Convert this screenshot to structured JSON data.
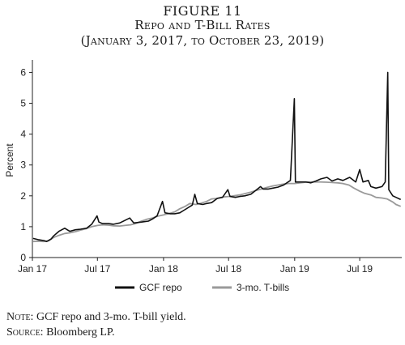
{
  "figure": {
    "label": "FIGURE 11",
    "title": "Repo and T-Bill Rates",
    "subtitle": "(January 3, 2017, to October 23, 2019)"
  },
  "footnotes": {
    "note_label": "Note:",
    "note_text": " GCF repo and 3-mo. T-bill yield.",
    "source_label": "Source:",
    "source_text": " Bloomberg LP."
  },
  "chart_data": {
    "type": "line",
    "ylabel": "Percent",
    "xlabel": "",
    "ylim": [
      0,
      6.3
    ],
    "yticks": [
      "0",
      "1",
      "2",
      "3",
      "4",
      "5",
      "6"
    ],
    "xticks": [
      "Jan 17",
      "Jul 17",
      "Jan 18",
      "Jul 18",
      "Jan 19",
      "Jul 19"
    ],
    "xrange": [
      "2017-01-03",
      "2019-10-23"
    ],
    "grid": false,
    "legend_position": "bottom",
    "series": [
      {
        "name": "GCF repo",
        "color": "#111111",
        "points": [
          [
            "2017-01-03",
            0.62
          ],
          [
            "2017-01-17",
            0.58
          ],
          [
            "2017-02-01",
            0.55
          ],
          [
            "2017-02-10",
            0.52
          ],
          [
            "2017-02-22",
            0.6
          ],
          [
            "2017-03-01",
            0.7
          ],
          [
            "2017-03-16",
            0.85
          ],
          [
            "2017-04-01",
            0.95
          ],
          [
            "2017-04-15",
            0.85
          ],
          [
            "2017-05-01",
            0.9
          ],
          [
            "2017-05-15",
            0.92
          ],
          [
            "2017-06-01",
            0.95
          ],
          [
            "2017-06-15",
            1.08
          ],
          [
            "2017-06-30",
            1.35
          ],
          [
            "2017-07-05",
            1.15
          ],
          [
            "2017-07-15",
            1.1
          ],
          [
            "2017-08-01",
            1.1
          ],
          [
            "2017-08-15",
            1.08
          ],
          [
            "2017-09-01",
            1.12
          ],
          [
            "2017-09-29",
            1.28
          ],
          [
            "2017-10-10",
            1.12
          ],
          [
            "2017-11-01",
            1.15
          ],
          [
            "2017-11-20",
            1.18
          ],
          [
            "2017-12-01",
            1.25
          ],
          [
            "2017-12-14",
            1.35
          ],
          [
            "2017-12-29",
            1.82
          ],
          [
            "2018-01-05",
            1.45
          ],
          [
            "2018-01-20",
            1.42
          ],
          [
            "2018-02-01",
            1.42
          ],
          [
            "2018-02-15",
            1.45
          ],
          [
            "2018-03-01",
            1.55
          ],
          [
            "2018-03-22",
            1.7
          ],
          [
            "2018-03-29",
            2.05
          ],
          [
            "2018-04-05",
            1.75
          ],
          [
            "2018-04-20",
            1.72
          ],
          [
            "2018-05-01",
            1.75
          ],
          [
            "2018-05-15",
            1.78
          ],
          [
            "2018-05-31",
            1.92
          ],
          [
            "2018-06-14",
            1.95
          ],
          [
            "2018-06-29",
            2.2
          ],
          [
            "2018-07-05",
            1.98
          ],
          [
            "2018-07-20",
            1.95
          ],
          [
            "2018-08-01",
            1.98
          ],
          [
            "2018-08-15",
            2.0
          ],
          [
            "2018-09-01",
            2.05
          ],
          [
            "2018-09-28",
            2.3
          ],
          [
            "2018-10-05",
            2.22
          ],
          [
            "2018-10-20",
            2.22
          ],
          [
            "2018-11-01",
            2.25
          ],
          [
            "2018-11-15",
            2.28
          ],
          [
            "2018-12-01",
            2.35
          ],
          [
            "2018-12-20",
            2.5
          ],
          [
            "2018-12-31",
            5.15
          ],
          [
            "2019-01-03",
            2.45
          ],
          [
            "2019-01-15",
            2.45
          ],
          [
            "2019-02-01",
            2.45
          ],
          [
            "2019-02-15",
            2.42
          ],
          [
            "2019-03-01",
            2.48
          ],
          [
            "2019-03-15",
            2.55
          ],
          [
            "2019-04-01",
            2.6
          ],
          [
            "2019-04-15",
            2.48
          ],
          [
            "2019-05-01",
            2.55
          ],
          [
            "2019-05-15",
            2.5
          ],
          [
            "2019-06-03",
            2.6
          ],
          [
            "2019-06-20",
            2.45
          ],
          [
            "2019-07-01",
            2.85
          ],
          [
            "2019-07-10",
            2.45
          ],
          [
            "2019-07-25",
            2.5
          ],
          [
            "2019-08-01",
            2.3
          ],
          [
            "2019-08-15",
            2.25
          ],
          [
            "2019-09-01",
            2.3
          ],
          [
            "2019-09-10",
            2.45
          ],
          [
            "2019-09-17",
            6.0
          ],
          [
            "2019-09-20",
            2.2
          ],
          [
            "2019-10-01",
            2.0
          ],
          [
            "2019-10-10",
            1.95
          ],
          [
            "2019-10-23",
            1.88
          ]
        ]
      },
      {
        "name": "3-mo. T-bills",
        "color": "#9a9a9a",
        "points": [
          [
            "2017-01-03",
            0.52
          ],
          [
            "2017-01-17",
            0.53
          ],
          [
            "2017-02-01",
            0.52
          ],
          [
            "2017-02-15",
            0.54
          ],
          [
            "2017-03-01",
            0.65
          ],
          [
            "2017-03-16",
            0.72
          ],
          [
            "2017-04-01",
            0.78
          ],
          [
            "2017-04-15",
            0.8
          ],
          [
            "2017-05-01",
            0.84
          ],
          [
            "2017-05-15",
            0.89
          ],
          [
            "2017-06-01",
            0.94
          ],
          [
            "2017-06-15",
            1.0
          ],
          [
            "2017-07-01",
            1.04
          ],
          [
            "2017-07-15",
            1.06
          ],
          [
            "2017-08-01",
            1.05
          ],
          [
            "2017-08-15",
            1.03
          ],
          [
            "2017-09-01",
            1.02
          ],
          [
            "2017-09-15",
            1.04
          ],
          [
            "2017-10-01",
            1.06
          ],
          [
            "2017-10-15",
            1.1
          ],
          [
            "2017-11-01",
            1.18
          ],
          [
            "2017-11-15",
            1.24
          ],
          [
            "2017-12-01",
            1.28
          ],
          [
            "2017-12-15",
            1.34
          ],
          [
            "2018-01-01",
            1.38
          ],
          [
            "2018-01-15",
            1.42
          ],
          [
            "2018-02-01",
            1.48
          ],
          [
            "2018-02-15",
            1.58
          ],
          [
            "2018-03-01",
            1.65
          ],
          [
            "2018-03-15",
            1.75
          ],
          [
            "2018-04-01",
            1.72
          ],
          [
            "2018-04-15",
            1.76
          ],
          [
            "2018-05-01",
            1.82
          ],
          [
            "2018-05-15",
            1.9
          ],
          [
            "2018-06-01",
            1.92
          ],
          [
            "2018-06-15",
            1.96
          ],
          [
            "2018-07-01",
            1.98
          ],
          [
            "2018-07-15",
            2.0
          ],
          [
            "2018-08-01",
            2.03
          ],
          [
            "2018-08-15",
            2.07
          ],
          [
            "2018-09-01",
            2.12
          ],
          [
            "2018-09-15",
            2.17
          ],
          [
            "2018-10-01",
            2.22
          ],
          [
            "2018-10-15",
            2.27
          ],
          [
            "2018-11-01",
            2.32
          ],
          [
            "2018-11-15",
            2.35
          ],
          [
            "2018-12-01",
            2.38
          ],
          [
            "2018-12-15",
            2.4
          ],
          [
            "2019-01-01",
            2.4
          ],
          [
            "2019-01-15",
            2.42
          ],
          [
            "2019-02-01",
            2.44
          ],
          [
            "2019-02-15",
            2.45
          ],
          [
            "2019-03-01",
            2.45
          ],
          [
            "2019-03-15",
            2.45
          ],
          [
            "2019-04-01",
            2.44
          ],
          [
            "2019-04-15",
            2.43
          ],
          [
            "2019-05-01",
            2.42
          ],
          [
            "2019-05-15",
            2.4
          ],
          [
            "2019-06-01",
            2.35
          ],
          [
            "2019-06-15",
            2.25
          ],
          [
            "2019-07-01",
            2.15
          ],
          [
            "2019-07-15",
            2.08
          ],
          [
            "2019-08-01",
            2.03
          ],
          [
            "2019-08-15",
            1.95
          ],
          [
            "2019-09-01",
            1.93
          ],
          [
            "2019-09-15",
            1.9
          ],
          [
            "2019-10-01",
            1.8
          ],
          [
            "2019-10-10",
            1.72
          ],
          [
            "2019-10-23",
            1.66
          ]
        ]
      }
    ]
  }
}
